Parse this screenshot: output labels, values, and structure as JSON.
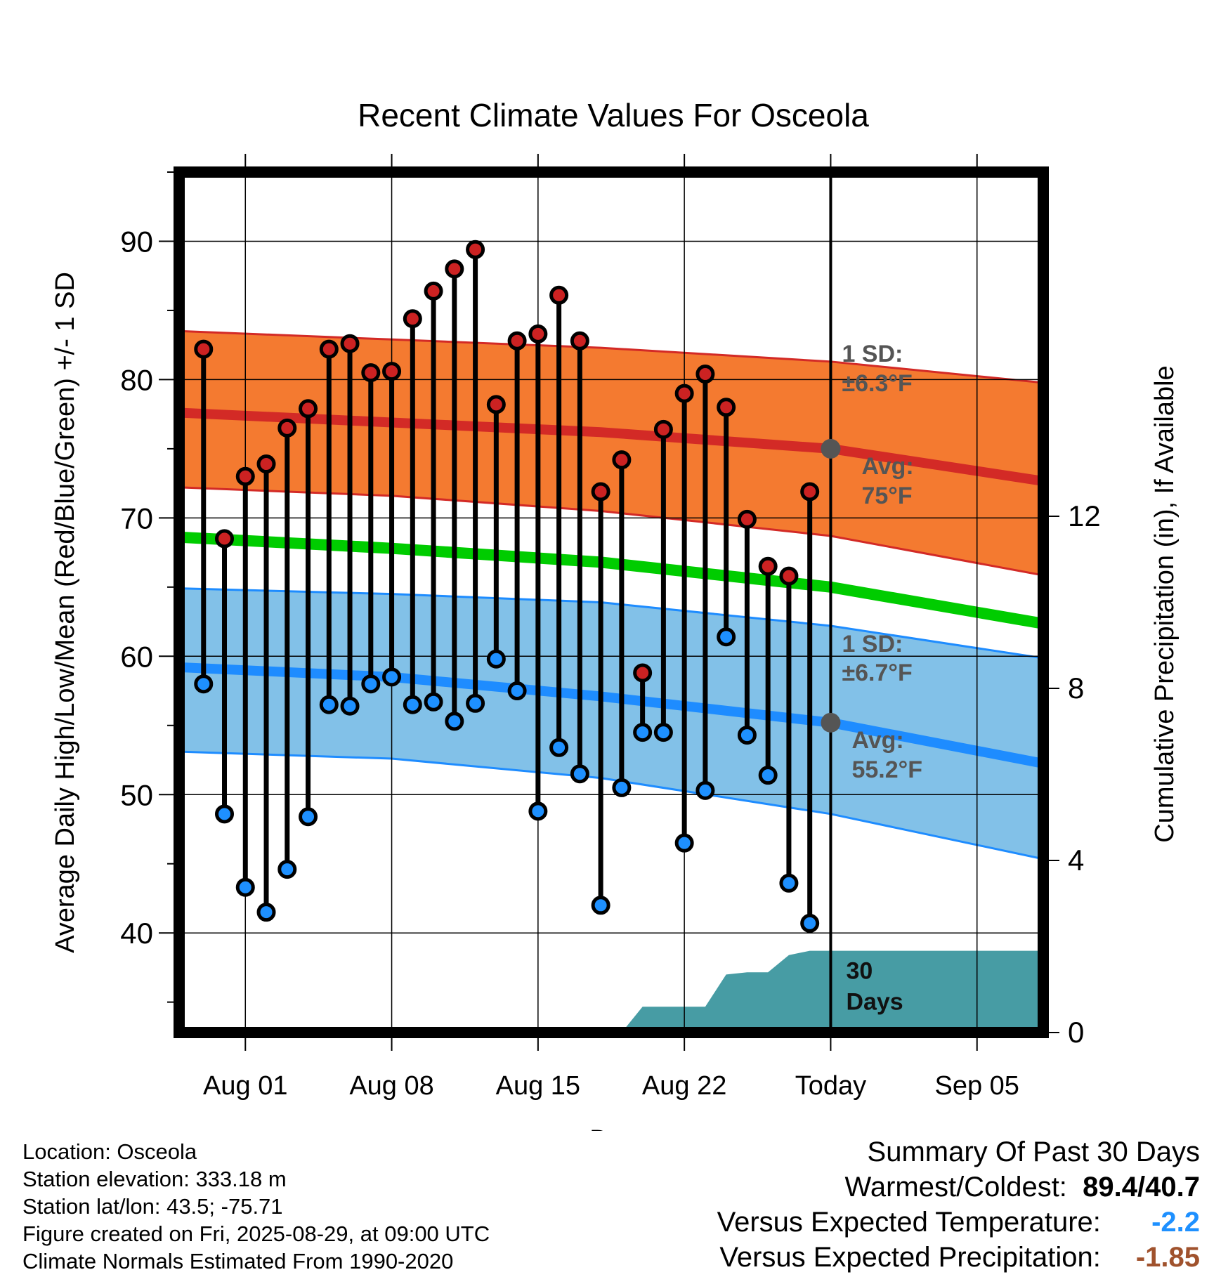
{
  "chart_data": {
    "type": "line",
    "title": "Recent Climate Values For Osceola",
    "xlabel": "Day",
    "ylabel": "Average Daily High/Low/Mean (Red/Blue/Green) +/- 1 SD",
    "y2label": "Cumulative Precipitation (in), If Available",
    "x_range": [
      "2025-07-29",
      "2025-09-08"
    ],
    "ylim": [
      32.8,
      95
    ],
    "y2lim": [
      0,
      20
    ],
    "yticks": [
      40,
      50,
      60,
      70,
      80,
      90
    ],
    "y2ticks": [
      0,
      4,
      8,
      12
    ],
    "x_ticks": [
      {
        "date": "2025-08-01",
        "label": "Aug 01"
      },
      {
        "date": "2025-08-08",
        "label": "Aug 08"
      },
      {
        "date": "2025-08-15",
        "label": "Aug 15"
      },
      {
        "date": "2025-08-22",
        "label": "Aug 22"
      },
      {
        "date": "2025-08-29",
        "label": "Today"
      },
      {
        "date": "2025-09-05",
        "label": "Sep 05"
      }
    ],
    "today": "2025-08-29",
    "grid": true,
    "days": [
      "2025-07-30",
      "2025-07-31",
      "2025-08-01",
      "2025-08-02",
      "2025-08-03",
      "2025-08-04",
      "2025-08-05",
      "2025-08-06",
      "2025-08-07",
      "2025-08-08",
      "2025-08-09",
      "2025-08-10",
      "2025-08-11",
      "2025-08-12",
      "2025-08-13",
      "2025-08-14",
      "2025-08-15",
      "2025-08-16",
      "2025-08-17",
      "2025-08-18",
      "2025-08-19",
      "2025-08-20",
      "2025-08-21",
      "2025-08-22",
      "2025-08-23",
      "2025-08-24",
      "2025-08-25",
      "2025-08-26",
      "2025-08-27",
      "2025-08-28"
    ],
    "series": [
      {
        "name": "High",
        "color": "#cc2222",
        "values": [
          82.2,
          68.5,
          73.0,
          73.9,
          76.5,
          77.9,
          82.2,
          82.6,
          80.5,
          80.6,
          84.4,
          86.4,
          88.0,
          89.4,
          78.2,
          82.8,
          83.3,
          86.1,
          82.8,
          71.9,
          74.2,
          58.8,
          76.4,
          79.0,
          80.4,
          78.0,
          69.9,
          66.5,
          65.8,
          71.9
        ]
      },
      {
        "name": "Low",
        "color": "#1e90ff",
        "values": [
          58.0,
          48.6,
          43.3,
          41.5,
          44.6,
          48.4,
          56.5,
          56.4,
          58.0,
          58.5,
          56.5,
          56.7,
          55.3,
          56.6,
          59.8,
          57.5,
          48.8,
          53.4,
          51.5,
          42.0,
          50.5,
          54.5,
          54.5,
          46.5,
          50.3,
          61.4,
          54.3,
          51.4,
          43.6,
          40.7
        ]
      }
    ],
    "normals": {
      "dates": [
        "2025-07-29",
        "2025-08-08",
        "2025-08-18",
        "2025-08-29",
        "2025-09-08"
      ],
      "high_mean": [
        77.6,
        76.9,
        76.2,
        75.0,
        72.7
      ],
      "high_upper": [
        83.5,
        82.9,
        82.3,
        81.3,
        79.8
      ],
      "high_lower": [
        72.2,
        71.6,
        70.5,
        68.7,
        65.9
      ],
      "low_mean": [
        59.2,
        58.5,
        57.1,
        55.2,
        52.3
      ],
      "low_upper": [
        64.9,
        64.5,
        63.9,
        62.2,
        59.9
      ],
      "low_lower": [
        53.1,
        52.6,
        51.2,
        48.6,
        45.4
      ],
      "avg_mean": [
        68.6,
        67.8,
        66.8,
        65.0,
        62.4
      ]
    },
    "annotations": {
      "high_sd_label": "1 SD:",
      "high_sd_value": "±6.3°F",
      "high_avg_label": "Avg:",
      "high_avg_value": "75°F",
      "low_sd_label": "1 SD:",
      "low_sd_value": "±6.7°F",
      "low_avg_label": "Avg:",
      "low_avg_value": "55.2°F",
      "days_label_1": "30",
      "days_label_2": "Days"
    },
    "precipitation": {
      "color": "#479ca4",
      "dates": [
        "2025-07-29",
        "2025-08-18",
        "2025-08-19",
        "2025-08-20",
        "2025-08-21",
        "2025-08-22",
        "2025-08-23",
        "2025-08-24",
        "2025-08-25",
        "2025-08-26",
        "2025-08-27",
        "2025-08-28",
        "2025-08-29",
        "2025-09-08"
      ],
      "values": [
        0,
        0,
        0,
        0.6,
        0.6,
        0.6,
        0.6,
        1.35,
        1.4,
        1.4,
        1.8,
        1.9,
        1.9,
        1.9
      ]
    },
    "colors": {
      "high_band": "#f47a30",
      "high_line": "#d32a26",
      "low_band": "#82c1e8",
      "low_line": "#1e8cff",
      "avg_line": "#00cc00",
      "high_dot": "#cc2222",
      "low_dot": "#1e90ff",
      "today_marker": "#555555"
    }
  },
  "footer": {
    "location": "Location: Osceola",
    "elevation": "Station elevation: 333.18 m",
    "latlon": "Station lat/lon: 43.5; -75.71",
    "created": "Figure created on Fri, 2025-08-29, at 09:00 UTC",
    "normals": "Climate Normals Estimated From 1990-2020"
  },
  "summary": {
    "title": "Summary Of Past 30 Days",
    "warm_cold_label": "Warmest/Coldest:",
    "warmest": "89.4",
    "sep": "/",
    "coldest": "40.7",
    "temp_label": "Versus Expected Temperature:",
    "temp_value": "-2.2",
    "temp_color": "#1e90ff",
    "precip_label": "Versus Expected Precipitation:",
    "precip_value": "-1.85",
    "precip_color": "#a0522d"
  }
}
